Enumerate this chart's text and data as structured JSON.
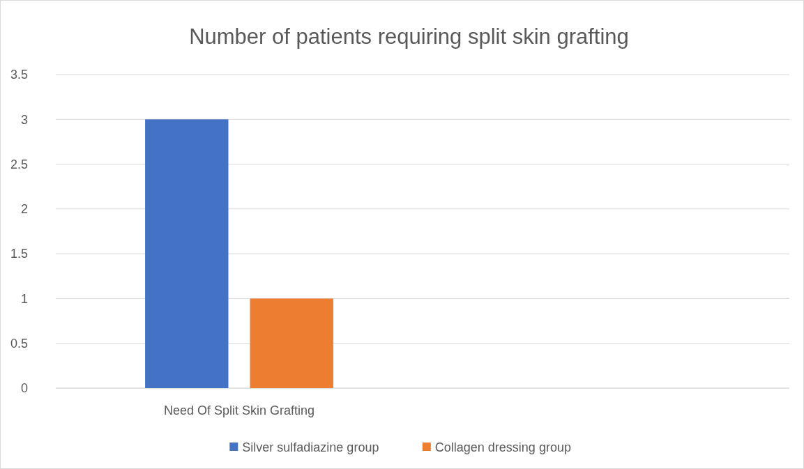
{
  "chart_data": {
    "type": "bar",
    "title": "Number of patients requiring split skin grafting",
    "categories": [
      "Need Of Split Skin Grafting",
      null
    ],
    "series": [
      {
        "name": "Silver sulfadiazine group",
        "color": "#4472c4",
        "values": [
          3,
          null
        ]
      },
      {
        "name": "Collagen dressing group",
        "color": "#ed7d31",
        "values": [
          1,
          null
        ]
      }
    ],
    "ylim": [
      0,
      3.5
    ],
    "yticks": [
      0,
      0.5,
      1,
      1.5,
      2,
      2.5,
      3,
      3.5
    ],
    "grid": "y",
    "legend": "bottom"
  }
}
